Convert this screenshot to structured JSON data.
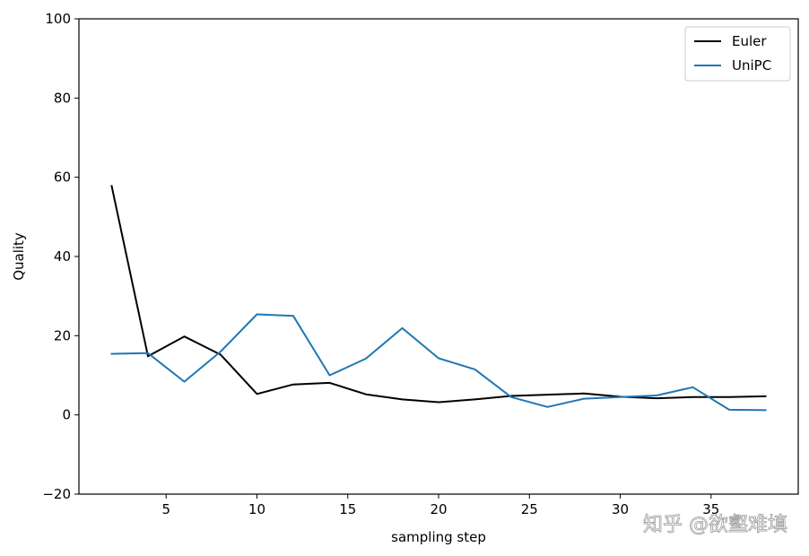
{
  "watermark": "知乎 @欲壑难填",
  "chart_data": {
    "type": "line",
    "title": "",
    "xlabel": "sampling step",
    "ylabel": "Quality",
    "xlim": [
      0.2,
      39.8
    ],
    "ylim": [
      -20,
      100
    ],
    "xticks": [
      5,
      10,
      15,
      20,
      25,
      30,
      35
    ],
    "yticks": [
      -20,
      0,
      20,
      40,
      60,
      80,
      100
    ],
    "grid": false,
    "legend_position": "top-right",
    "x": [
      2,
      4,
      6,
      8,
      10,
      12,
      14,
      16,
      18,
      20,
      22,
      24,
      26,
      28,
      30,
      32,
      34,
      36,
      38
    ],
    "series": [
      {
        "name": "Euler",
        "color": "#000000",
        "values": [
          57.8,
          14.8,
          19.8,
          15.2,
          5.3,
          7.7,
          8.1,
          5.2,
          3.9,
          3.2,
          3.9,
          4.8,
          5.1,
          5.4,
          4.6,
          4.2,
          4.5,
          4.5,
          4.7
        ]
      },
      {
        "name": "UniPC",
        "color": "#1f77b4",
        "values": [
          15.4,
          15.6,
          8.4,
          16.0,
          25.4,
          25.0,
          10.0,
          14.2,
          21.9,
          14.3,
          11.5,
          4.5,
          2.0,
          4.1,
          4.5,
          4.9,
          7.0,
          1.3,
          1.2
        ]
      }
    ]
  }
}
